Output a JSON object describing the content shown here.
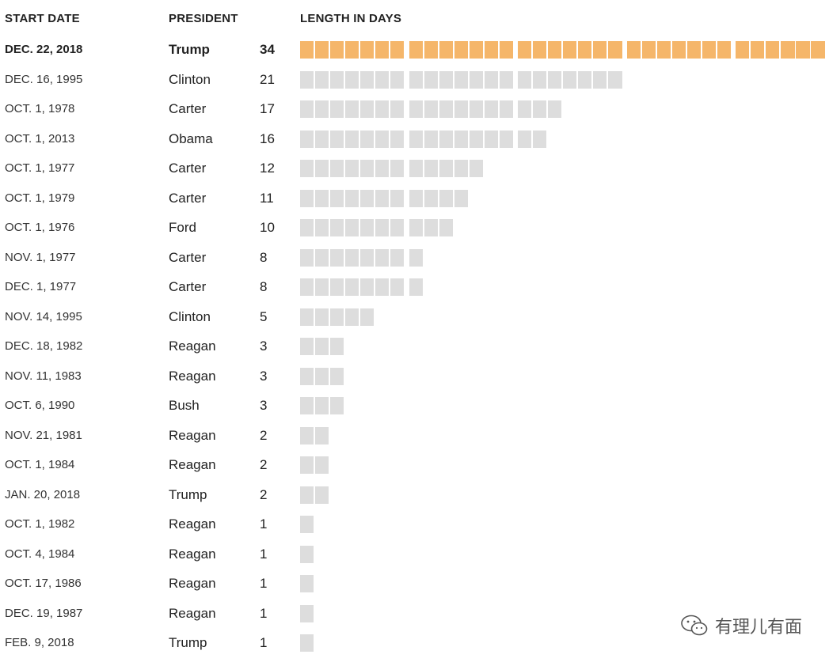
{
  "headers": {
    "start_date": "START DATE",
    "president": "PRESIDENT",
    "length": "LENGTH IN DAYS"
  },
  "colors": {
    "highlight": "#f5b66a",
    "normal": "#dddddd"
  },
  "watermark": {
    "text": "有理儿有面",
    "icon": "wechat-icon"
  },
  "chart_data": {
    "type": "bar",
    "orientation": "horizontal",
    "title": "",
    "xlabel": "LENGTH IN DAYS",
    "unit": "days",
    "grid": false,
    "columns": [
      "START DATE",
      "PRESIDENT",
      "LENGTH IN DAYS"
    ],
    "rows": [
      {
        "start_date": "DEC. 22, 2018",
        "president": "Trump",
        "days": 34,
        "highlight": true
      },
      {
        "start_date": "DEC. 16, 1995",
        "president": "Clinton",
        "days": 21,
        "highlight": false
      },
      {
        "start_date": "OCT. 1, 1978",
        "president": "Carter",
        "days": 17,
        "highlight": false
      },
      {
        "start_date": "OCT. 1, 2013",
        "president": "Obama",
        "days": 16,
        "highlight": false
      },
      {
        "start_date": "OCT. 1, 1977",
        "president": "Carter",
        "days": 12,
        "highlight": false
      },
      {
        "start_date": "OCT. 1, 1979",
        "president": "Carter",
        "days": 11,
        "highlight": false
      },
      {
        "start_date": "OCT. 1, 1976",
        "president": "Ford",
        "days": 10,
        "highlight": false
      },
      {
        "start_date": "NOV. 1, 1977",
        "president": "Carter",
        "days": 8,
        "highlight": false
      },
      {
        "start_date": "DEC. 1, 1977",
        "president": "Carter",
        "days": 8,
        "highlight": false
      },
      {
        "start_date": "NOV. 14, 1995",
        "president": "Clinton",
        "days": 5,
        "highlight": false
      },
      {
        "start_date": "DEC. 18, 1982",
        "president": "Reagan",
        "days": 3,
        "highlight": false
      },
      {
        "start_date": "NOV. 11, 1983",
        "president": "Reagan",
        "days": 3,
        "highlight": false
      },
      {
        "start_date": "OCT. 6, 1990",
        "president": "Bush",
        "days": 3,
        "highlight": false
      },
      {
        "start_date": "NOV. 21, 1981",
        "president": "Reagan",
        "days": 2,
        "highlight": false
      },
      {
        "start_date": "OCT. 1, 1984",
        "president": "Reagan",
        "days": 2,
        "highlight": false
      },
      {
        "start_date": "JAN. 20, 2018",
        "president": "Trump",
        "days": 2,
        "highlight": false
      },
      {
        "start_date": "OCT. 1, 1982",
        "president": "Reagan",
        "days": 1,
        "highlight": false
      },
      {
        "start_date": "OCT. 4, 1984",
        "president": "Reagan",
        "days": 1,
        "highlight": false
      },
      {
        "start_date": "OCT. 17, 1986",
        "president": "Reagan",
        "days": 1,
        "highlight": false
      },
      {
        "start_date": "DEC. 19, 1987",
        "president": "Reagan",
        "days": 1,
        "highlight": false
      },
      {
        "start_date": "FEB. 9, 2018",
        "president": "Trump",
        "days": 1,
        "highlight": false
      }
    ]
  }
}
